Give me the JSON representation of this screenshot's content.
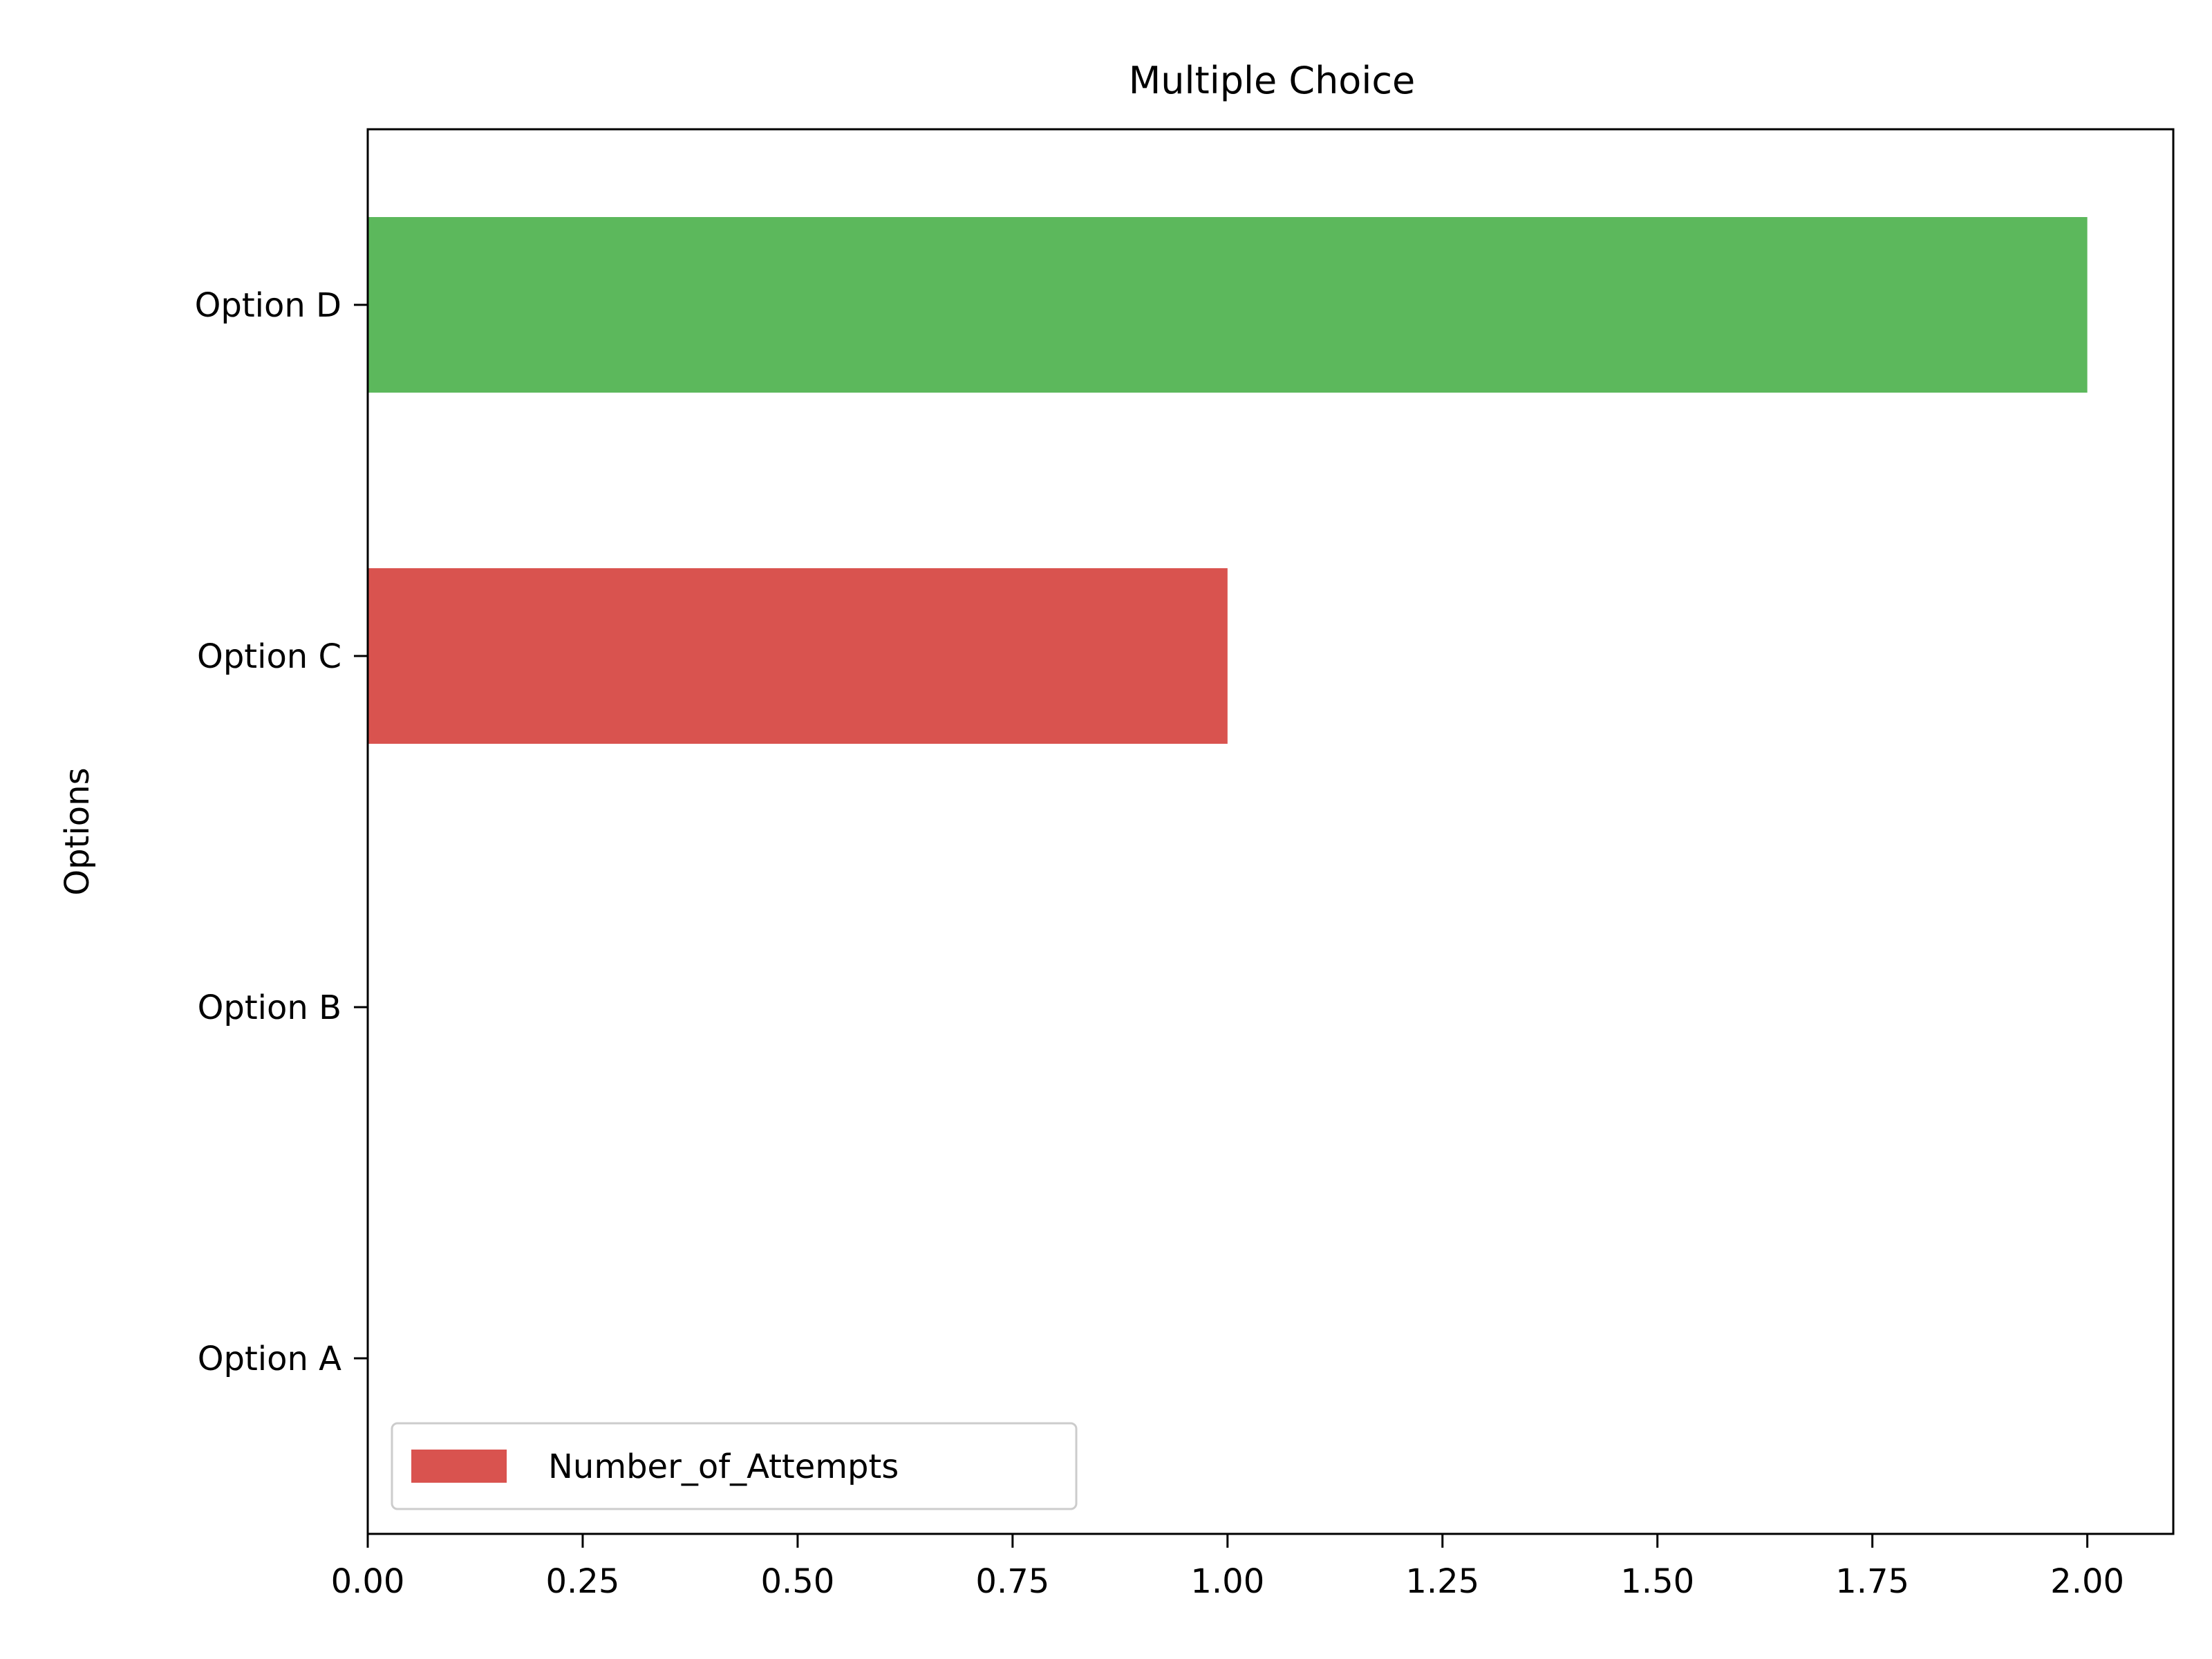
{
  "chart_data": {
    "type": "bar",
    "orientation": "horizontal",
    "title": "Multiple Choice",
    "xlabel": "",
    "ylabel": "Options",
    "categories": [
      "Option A",
      "Option B",
      "Option C",
      "Option D"
    ],
    "values": [
      0,
      0,
      1,
      2
    ],
    "bar_colors": [
      "#d9534f",
      "#d9534f",
      "#d9534f",
      "#5cb85c"
    ],
    "xlim": [
      0,
      2.1
    ],
    "xticks": [
      0.0,
      0.25,
      0.5,
      0.75,
      1.0,
      1.25,
      1.5,
      1.75,
      2.0
    ],
    "xtick_labels": [
      "0.00",
      "0.25",
      "0.50",
      "0.75",
      "1.00",
      "1.25",
      "1.50",
      "1.75",
      "2.00"
    ],
    "grid": false,
    "legend": {
      "position": "lower-left",
      "entries": [
        {
          "label": "Number_of_Attempts",
          "color": "#d9534f"
        }
      ]
    }
  }
}
